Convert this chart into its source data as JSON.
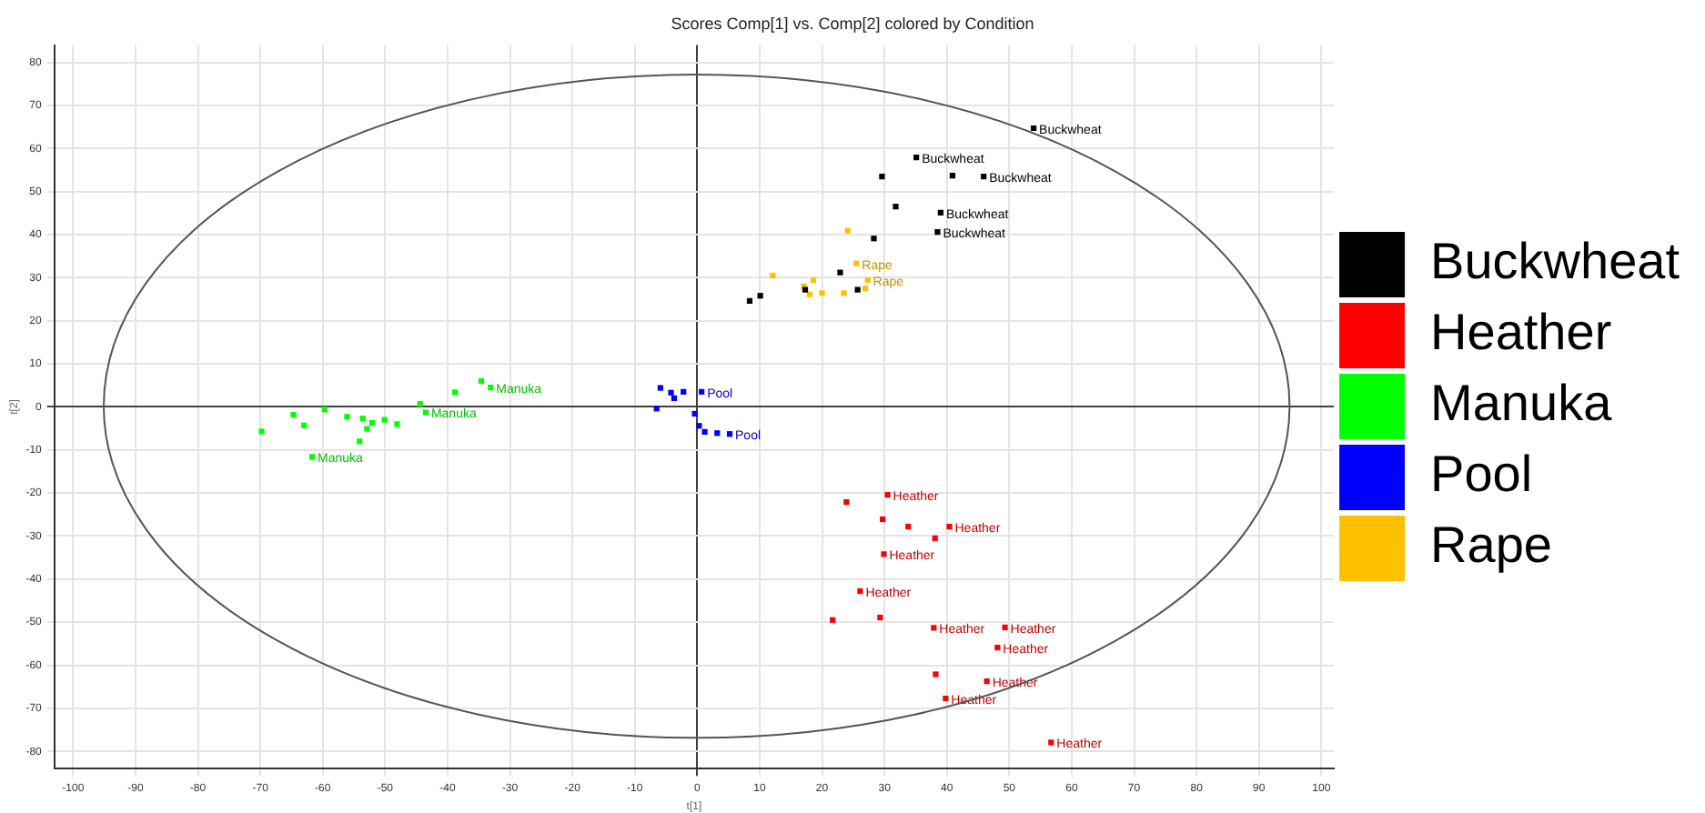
{
  "chart_data": {
    "type": "scatter",
    "title": "Scores Comp[1] vs. Comp[2] colored by Condition",
    "xlabel": "t[1]",
    "ylabel": "t[2]",
    "xlim": [
      -103,
      102
    ],
    "ylim": [
      -84,
      84
    ],
    "xticks": [
      -100,
      -90,
      -80,
      -70,
      -60,
      -50,
      -40,
      -30,
      -20,
      -10,
      0,
      10,
      20,
      30,
      40,
      50,
      60,
      70,
      80,
      90,
      100
    ],
    "yticks": [
      -80,
      -70,
      -60,
      -50,
      -40,
      -30,
      -20,
      -10,
      0,
      10,
      20,
      30,
      40,
      50,
      60,
      70,
      80
    ],
    "grid": true,
    "legend": "right",
    "marker": "square",
    "series": [
      {
        "name": "Buckwheat",
        "color": "#000000",
        "x": [
          53.9,
          35.1,
          29.6,
          40.9,
          45.9,
          31.8,
          39.0,
          38.5,
          28.3,
          22.9,
          10.1,
          8.4,
          17.3,
          25.7
        ],
        "values": [
          64.7,
          57.9,
          53.5,
          53.7,
          53.5,
          46.5,
          45.1,
          40.6,
          39.1,
          31.2,
          25.8,
          24.6,
          27.2,
          27.2
        ]
      },
      {
        "name": "Heather",
        "color": "#ff0000",
        "x": [
          30.5,
          23.9,
          29.7,
          33.8,
          40.4,
          38.1,
          29.9,
          26.1,
          21.7,
          29.3,
          37.9,
          49.3,
          48.1,
          38.2,
          46.4,
          39.8,
          56.7
        ],
        "values": [
          -20.4,
          -22.1,
          -26.1,
          -27.8,
          -27.8,
          -30.5,
          -34.2,
          -42.8,
          -49.5,
          -48.9,
          -51.3,
          -51.2,
          -55.9,
          -62.1,
          -63.7,
          -67.7,
          -77.9
        ]
      },
      {
        "name": "Manuka",
        "color": "#00ff00",
        "x": [
          -34.6,
          -38.8,
          -33.1,
          -44.4,
          -43.5,
          -59.7,
          -64.7,
          -63.0,
          -69.8,
          -61.7,
          -54.1,
          -56.1,
          -53.6,
          -52.1,
          -50.1,
          -52.9,
          -48.1
        ],
        "values": [
          6.0,
          3.4,
          4.5,
          0.7,
          -1.3,
          -0.6,
          -1.8,
          -4.3,
          -5.7,
          -11.6,
          -8.0,
          -2.3,
          -2.7,
          -3.7,
          -3.0,
          -5.1,
          -4.0
        ]
      },
      {
        "name": "Pool",
        "color": "#0000ff",
        "x": [
          -5.9,
          -4.2,
          -2.2,
          0.7,
          -6.5,
          -0.4,
          0.3,
          1.2,
          3.2,
          5.2,
          -3.7
        ],
        "values": [
          4.4,
          3.3,
          3.5,
          3.5,
          -0.4,
          -1.6,
          -4.4,
          -5.8,
          -6.1,
          -6.3,
          2.0
        ]
      },
      {
        "name": "Rape",
        "color": "#ffc000",
        "x": [
          24.1,
          25.5,
          12.1,
          18.6,
          17.1,
          27.3,
          20.0,
          23.5,
          18.0,
          26.9
        ],
        "values": [
          40.9,
          33.3,
          30.5,
          29.4,
          28.0,
          29.4,
          26.4,
          26.4,
          26.1,
          27.5
        ]
      }
    ]
  }
}
